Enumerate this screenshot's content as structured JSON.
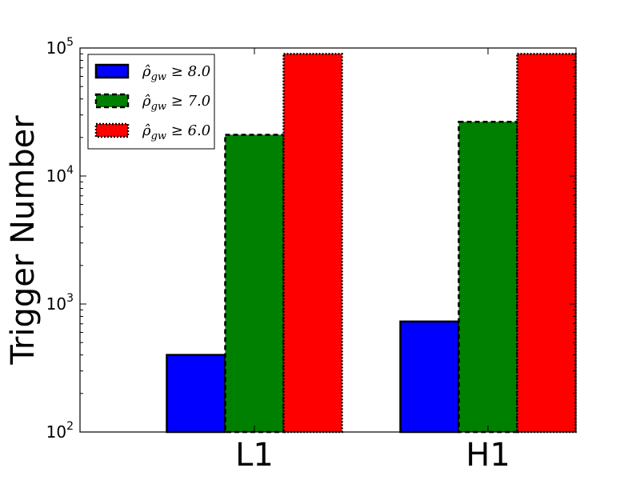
{
  "chart_data": {
    "type": "bar",
    "title": "",
    "xlabel": "",
    "ylabel": "Trigger Number",
    "yscale": "log",
    "ylim": [
      100,
      100000
    ],
    "y_ticks": [
      {
        "value": 100,
        "base": "10",
        "exp": "2"
      },
      {
        "value": 1000,
        "base": "10",
        "exp": "3"
      },
      {
        "value": 10000,
        "base": "10",
        "exp": "4"
      },
      {
        "value": 100000,
        "base": "10",
        "exp": "5"
      }
    ],
    "categories": [
      "L1",
      "H1"
    ],
    "series": [
      {
        "name": "ρ̂gw ≥ 8.0",
        "label_main": "ρ̂",
        "label_sub": "gw",
        "label_rest": " ≥ 8.0",
        "color": "#0000ff",
        "border": "solid",
        "values": [
          400,
          730
        ]
      },
      {
        "name": "ρ̂gw ≥ 7.0",
        "label_main": "ρ̂",
        "label_sub": "gw",
        "label_rest": " ≥ 7.0",
        "color": "#008000",
        "border": "dashed",
        "values": [
          21000,
          26500
        ]
      },
      {
        "name": "ρ̂gw ≥ 6.0",
        "label_main": "ρ̂",
        "label_sub": "gw",
        "label_rest": " ≥ 6.0",
        "color": "#ff0000",
        "border": "dotted",
        "values": [
          90000,
          90000
        ]
      }
    ],
    "legend_position": "top-left",
    "grid": false
  }
}
